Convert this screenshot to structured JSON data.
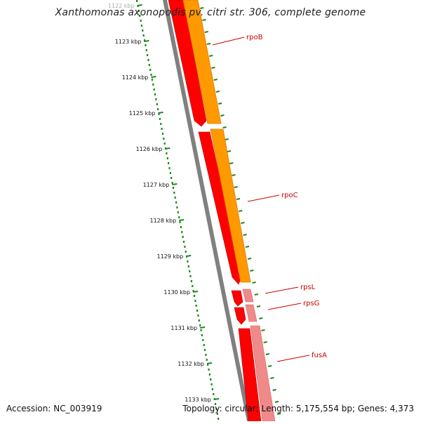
{
  "title": "Xanthomonas axonopodis pv. citri str. 306, complete genome",
  "footer": {
    "accession": "Accession: NC_003919",
    "topology": "Topology: circular; Length: 5,175,554 bp; Genes: 4,373"
  },
  "ruler": {
    "labels": [
      "1122 kbp",
      "1123 kbp",
      "1124 kbp",
      "1125 kbp",
      "1126 kbp",
      "1127 kbp",
      "1128 kbp",
      "1129 kbp",
      "1130 kbp",
      "1131 kbp",
      "1132 kbp",
      "1133 kbp"
    ],
    "color": "#1b8a1b"
  },
  "genes": [
    {
      "name": "rpoB",
      "color": "#cc0000"
    },
    {
      "name": "rpoC",
      "color": "#cc0000"
    },
    {
      "name": "rpsL",
      "color": "#cc0000"
    },
    {
      "name": "rpsG",
      "color": "#cc0000"
    },
    {
      "name": "fusA",
      "color": "#cc0000"
    }
  ],
  "colors": {
    "backbone": "#808080",
    "track_red": "#ff0000",
    "track_orange": "#ff9900",
    "track_pink": "#f08a8a",
    "tick_green": "#1b8a1b"
  }
}
